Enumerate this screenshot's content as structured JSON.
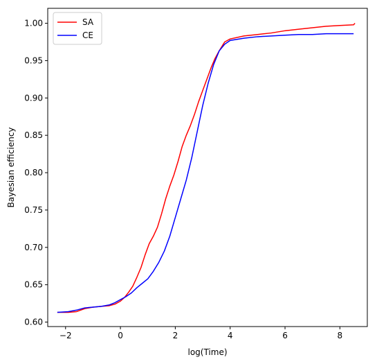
{
  "chart_data": {
    "type": "line",
    "title": "",
    "xlabel": "log(Time)",
    "ylabel": "Bayesian efficiency",
    "xlim": [
      -2.65,
      9.0
    ],
    "ylim": [
      0.594,
      1.02
    ],
    "xticks": [
      -2,
      0,
      2,
      4,
      6,
      8
    ],
    "yticks": [
      0.6,
      0.65,
      0.7,
      0.75,
      0.8,
      0.85,
      0.9,
      0.95,
      1.0
    ],
    "xtick_labels": [
      "−2",
      "0",
      "2",
      "4",
      "6",
      "8"
    ],
    "ytick_labels": [
      "0.60",
      "0.65",
      "0.70",
      "0.75",
      "0.80",
      "0.85",
      "0.90",
      "0.95",
      "1.00"
    ],
    "grid": false,
    "legend_position": "top-left",
    "series": [
      {
        "name": "SA",
        "color": "#ff0000",
        "x": [
          -2.3,
          -1.9,
          -1.6,
          -1.3,
          -1.0,
          -0.7,
          -0.4,
          -0.2,
          0.0,
          0.15,
          0.3,
          0.45,
          0.6,
          0.75,
          0.9,
          1.05,
          1.2,
          1.35,
          1.5,
          1.65,
          1.8,
          1.95,
          2.1,
          2.25,
          2.4,
          2.55,
          2.7,
          2.85,
          3.0,
          3.15,
          3.3,
          3.45,
          3.6,
          3.8,
          4.0,
          4.5,
          5.0,
          5.5,
          6.0,
          6.5,
          7.0,
          7.5,
          8.0,
          8.5,
          8.55
        ],
        "y": [
          0.613,
          0.613,
          0.614,
          0.618,
          0.62,
          0.621,
          0.622,
          0.624,
          0.628,
          0.633,
          0.64,
          0.648,
          0.66,
          0.673,
          0.69,
          0.705,
          0.715,
          0.727,
          0.745,
          0.765,
          0.782,
          0.797,
          0.815,
          0.835,
          0.85,
          0.863,
          0.878,
          0.895,
          0.91,
          0.925,
          0.94,
          0.953,
          0.963,
          0.975,
          0.979,
          0.983,
          0.985,
          0.987,
          0.99,
          0.992,
          0.994,
          0.996,
          0.997,
          0.998,
          1.0
        ]
      },
      {
        "name": "CE",
        "color": "#0000ff",
        "x": [
          -2.3,
          -1.9,
          -1.6,
          -1.3,
          -1.0,
          -0.7,
          -0.4,
          -0.2,
          0.0,
          0.2,
          0.4,
          0.6,
          0.8,
          1.0,
          1.2,
          1.4,
          1.6,
          1.8,
          2.0,
          2.2,
          2.4,
          2.6,
          2.8,
          3.0,
          3.2,
          3.4,
          3.6,
          3.8,
          4.0,
          4.5,
          5.0,
          5.5,
          6.0,
          6.5,
          7.0,
          7.5,
          8.0,
          8.5
        ],
        "y": [
          0.613,
          0.614,
          0.616,
          0.619,
          0.62,
          0.621,
          0.623,
          0.626,
          0.63,
          0.634,
          0.639,
          0.646,
          0.652,
          0.658,
          0.668,
          0.68,
          0.695,
          0.715,
          0.74,
          0.765,
          0.79,
          0.82,
          0.855,
          0.89,
          0.92,
          0.945,
          0.963,
          0.972,
          0.977,
          0.98,
          0.982,
          0.983,
          0.984,
          0.985,
          0.985,
          0.986,
          0.986,
          0.986
        ]
      }
    ]
  }
}
